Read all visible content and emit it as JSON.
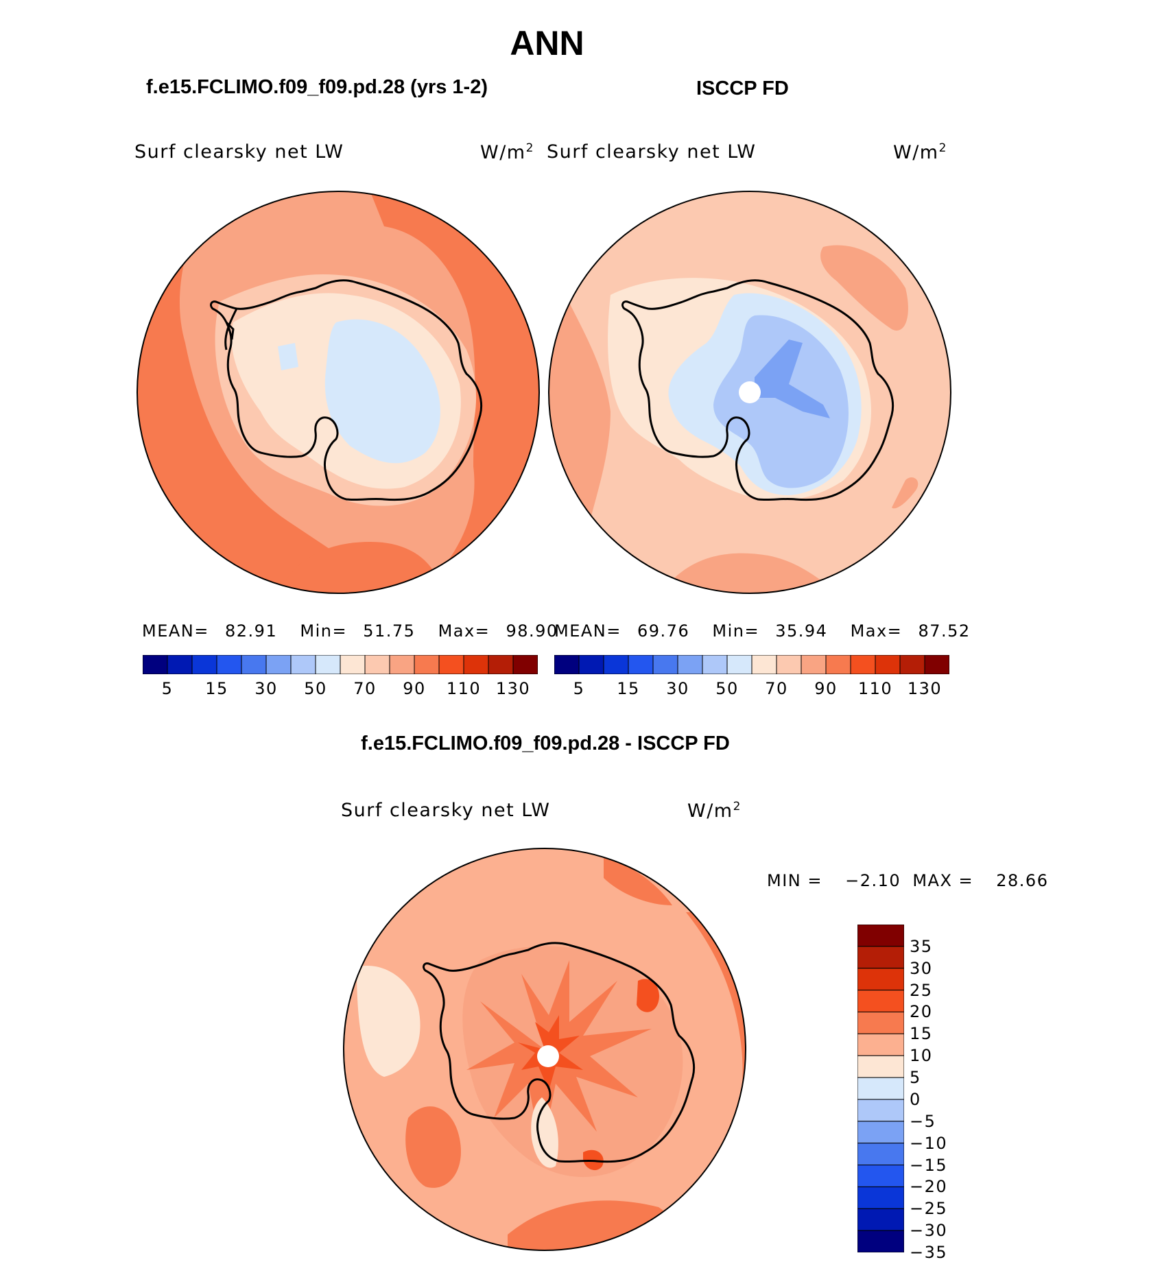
{
  "figure": {
    "season": "ANN",
    "panel_model_title": "f.e15.FCLIMO.f09_f09.pd.28 (yrs 1-2)",
    "panel_obs_title": "ISCCP FD",
    "panel_diff_title": "f.e15.FCLIMO.f09_f09.pd.28 - ISCCP FD"
  },
  "panels": [
    {
      "variable": "Surf clearsky net LW",
      "units": "W/m",
      "units_sup": "2",
      "stats": {
        "mean_label": "MEAN=",
        "mean": "82.91",
        "min_label": "Min=",
        "min": "51.75",
        "max_label": "Max=",
        "max": "98.90"
      }
    },
    {
      "variable": "Surf clearsky net LW",
      "units": "W/m",
      "units_sup": "2",
      "stats": {
        "mean_label": "MEAN=",
        "mean": "69.76",
        "min_label": "Min=",
        "min": "35.94",
        "max_label": "Max=",
        "max": "87.52"
      }
    },
    {
      "variable": "Surf clearsky net LW",
      "units": "W/m",
      "units_sup": "2",
      "stats": {
        "min_label": "MIN =",
        "min": "−2.10",
        "max_label": "MAX =",
        "max": "28.66"
      }
    }
  ],
  "colorbar_abs": {
    "colors": [
      "#00007f",
      "#0019b3",
      "#0a36d8",
      "#2356ef",
      "#4878ef",
      "#7ba2f4",
      "#aec8f9",
      "#d6e8fb",
      "#fde6d4",
      "#fcc9b0",
      "#f9a483",
      "#f77a4f",
      "#f4501f",
      "#dd3309",
      "#b41e06",
      "#800000"
    ],
    "labels": [
      "5",
      "15",
      "30",
      "50",
      "70",
      "90",
      "110",
      "130"
    ]
  },
  "colorbar_diff": {
    "colors": [
      "#00007f",
      "#0019b3",
      "#0a36d8",
      "#2356ef",
      "#4878ef",
      "#7ba2f4",
      "#aec8f9",
      "#d6e8fb",
      "#fde6d4",
      "#fcb090",
      "#f77a4f",
      "#f4501f",
      "#dd3309",
      "#b41e06",
      "#800000"
    ],
    "labels": [
      "35",
      "30",
      "25",
      "20",
      "15",
      "10",
      "5",
      "0",
      "−5",
      "−10",
      "−15",
      "−20",
      "−25",
      "−30",
      "−35"
    ]
  },
  "map_colors": {
    "deep_orange": "#f77a4f",
    "orange": "#f9a483",
    "peach": "#fcc9b0",
    "cream": "#fde6d4",
    "pale_blue": "#d6e8fb",
    "light_blue": "#aec8f9",
    "mid_blue": "#7ba2f4",
    "red_orange": "#f4501f",
    "coastline": "#000000"
  }
}
